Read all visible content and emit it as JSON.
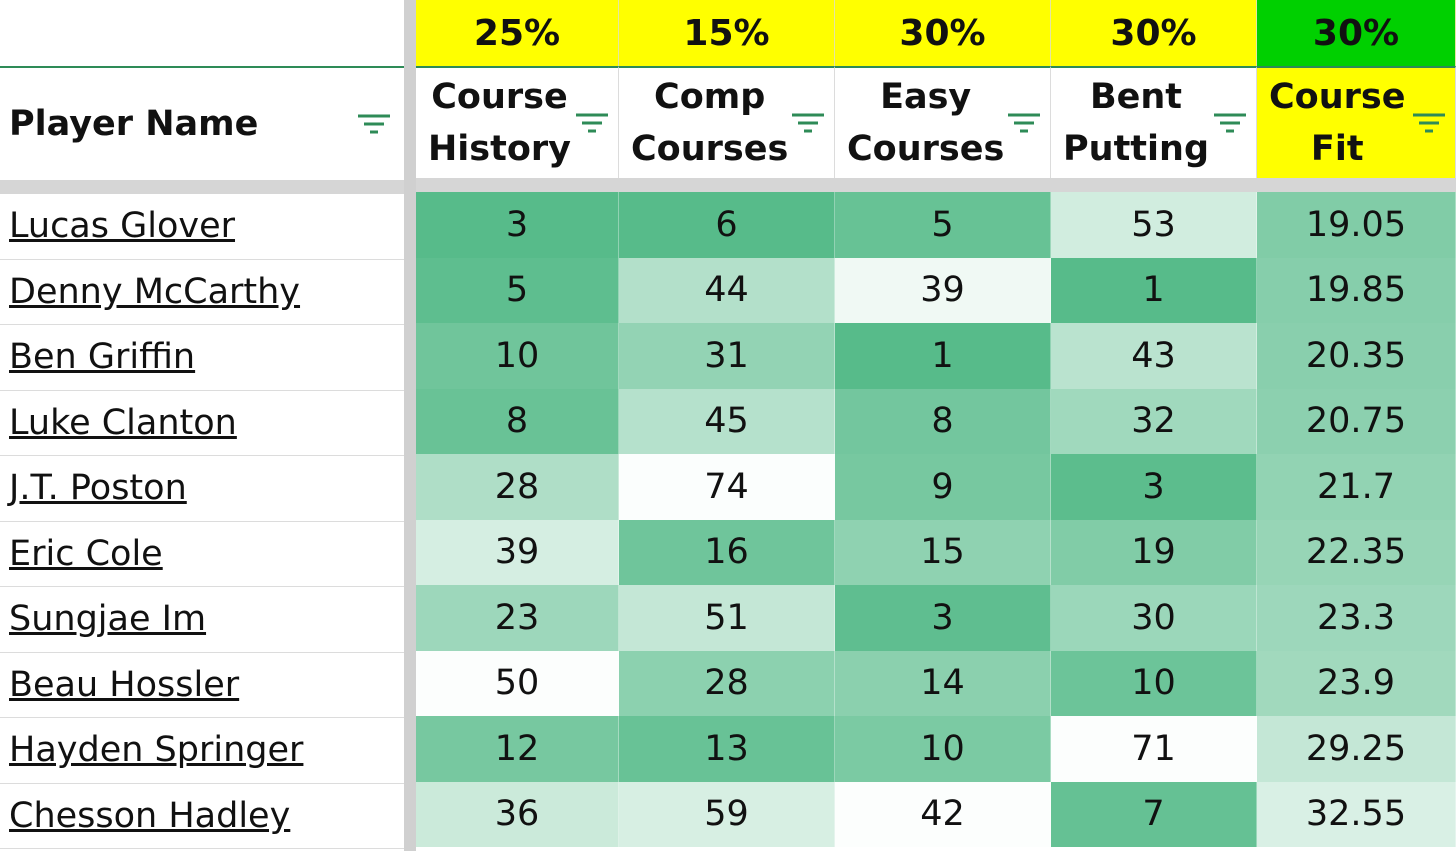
{
  "columns": {
    "name_header": "Player Name",
    "headers": [
      {
        "line1": "Course",
        "line2": "History",
        "weight": "25%"
      },
      {
        "line1": "Comp",
        "line2": "Courses",
        "weight": "15%"
      },
      {
        "line1": "Easy",
        "line2": "Courses",
        "weight": "30%"
      },
      {
        "line1": "Bent",
        "line2": "Putting",
        "weight": "30%"
      },
      {
        "line1": "Course",
        "line2": "Fit",
        "weight": "30%"
      }
    ]
  },
  "icons": {
    "filter": "filter-icon"
  },
  "colors": {
    "weight_bg": "#ffff00",
    "fit_weight_bg": "#00d000",
    "fit_header_bg": "#ffff00",
    "scale_high": "#57bb8a",
    "scale_low": "#ffffff"
  },
  "rows": [
    {
      "name": "Lucas Glover",
      "values": [
        "3",
        "6",
        "5",
        "53",
        "19.05"
      ]
    },
    {
      "name": "Denny McCarthy",
      "values": [
        "5",
        "44",
        "39",
        "1",
        "19.85"
      ]
    },
    {
      "name": "Ben Griffin",
      "values": [
        "10",
        "31",
        "1",
        "43",
        "20.35"
      ]
    },
    {
      "name": "Luke Clanton",
      "values": [
        "8",
        "45",
        "8",
        "32",
        "20.75"
      ]
    },
    {
      "name": "J.T. Poston",
      "values": [
        "28",
        "74",
        "9",
        "3",
        "21.7"
      ]
    },
    {
      "name": "Eric Cole",
      "values": [
        "39",
        "16",
        "15",
        "19",
        "22.35"
      ]
    },
    {
      "name": "Sungjae Im",
      "values": [
        "23",
        "51",
        "3",
        "30",
        "23.3"
      ]
    },
    {
      "name": "Beau Hossler",
      "values": [
        "50",
        "28",
        "14",
        "10",
        "23.9"
      ]
    },
    {
      "name": "Hayden Springer",
      "values": [
        "12",
        "13",
        "10",
        "71",
        "29.25"
      ]
    },
    {
      "name": "Chesson Hadley",
      "values": [
        "36",
        "59",
        "42",
        "7",
        "32.55"
      ]
    }
  ]
}
